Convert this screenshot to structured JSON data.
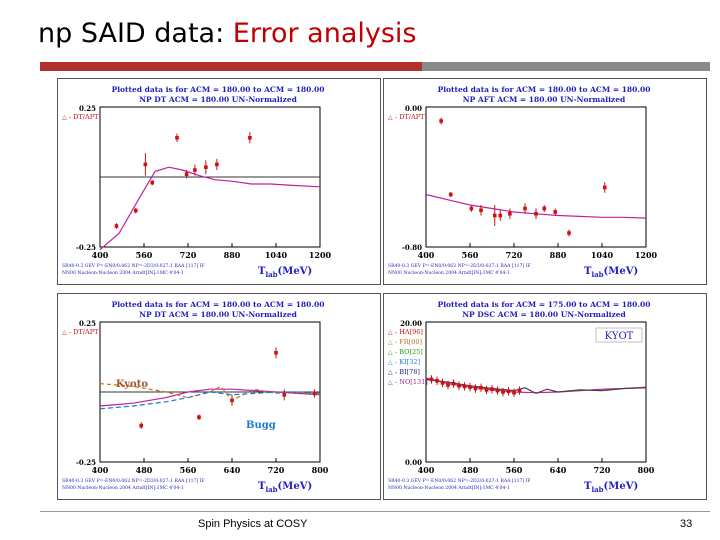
{
  "slide": {
    "title_main": "np SAID data: ",
    "title_accent": "Error analysis",
    "footer_left": "Spin Physics at COSY",
    "page_number": "33",
    "colors": {
      "title_accent": "#c00000",
      "rule_red": "#b03030",
      "rule_grey": "#8a8a8a",
      "panel_title": "#1f1fbf",
      "curve": "#c020a0",
      "data": "#cc1111"
    }
  },
  "chart_data": [
    {
      "type": "scatter",
      "header1": "Plotted data is for ACM = 180.00 to ACM = 180.00",
      "header2": "NP    DT     ACM =   180.00 UN-Normalized",
      "legend": [
        "- DT/APT"
      ],
      "ytick_top": "0.25",
      "ytick_bottom": "-0.25",
      "xticks": [
        "400",
        "560",
        "720",
        "880",
        "1040",
        "1200"
      ],
      "xlim": [
        400,
        1200
      ],
      "ylim": [
        -0.25,
        0.25
      ],
      "xlabel_main": "T",
      "xlabel_sub": "lab",
      "xlabel_unit": "(MeV)",
      "footnote1": "SR40-0.3 GEV P=-EN0/0:062 NP=-2D3/0:027:1 RAA [117] IF",
      "footnote2": "NN00 Nucleon-Nucleon 2004 Arndt[IN]:1MC 4'04-1",
      "points": [
        {
          "x": 460,
          "y": -0.175,
          "e": 0.01
        },
        {
          "x": 530,
          "y": -0.12,
          "e": 0.01
        },
        {
          "x": 565,
          "y": 0.045,
          "e": 0.04
        },
        {
          "x": 590,
          "y": -0.02,
          "e": 0.01
        },
        {
          "x": 680,
          "y": 0.14,
          "e": 0.015
        },
        {
          "x": 715,
          "y": 0.01,
          "e": 0.015
        },
        {
          "x": 745,
          "y": 0.025,
          "e": 0.02
        },
        {
          "x": 785,
          "y": 0.035,
          "e": 0.025
        },
        {
          "x": 825,
          "y": 0.045,
          "e": 0.02
        },
        {
          "x": 945,
          "y": 0.14,
          "e": 0.02
        }
      ],
      "curves": [
        {
          "name": "",
          "color": "#c020a0",
          "dash": "",
          "x": [
            400,
            470,
            540,
            600,
            650,
            700,
            760,
            820,
            880,
            950,
            1020,
            1100,
            1200
          ],
          "y": [
            -0.26,
            -0.2,
            -0.08,
            0.02,
            0.035,
            0.025,
            0.005,
            -0.01,
            -0.015,
            -0.025,
            -0.025,
            -0.03,
            -0.035
          ]
        }
      ],
      "zero_line": 0
    },
    {
      "type": "scatter",
      "header1": "Plotted data is for ACM = 180.00 to ACM = 180.00",
      "header2": "NP    AFT    ACM =   180.00 UN-Normalized",
      "legend": [
        "- DT/APT"
      ],
      "ytick_top": "0.00",
      "ytick_bottom": "-0.80",
      "xticks": [
        "400",
        "560",
        "720",
        "880",
        "1040",
        "1200"
      ],
      "xlim": [
        400,
        1200
      ],
      "ylim": [
        -0.8,
        0.0
      ],
      "xlabel_main": "T",
      "xlabel_sub": "lab",
      "xlabel_unit": "(MeV)",
      "footnote1": "SR40-0.3 GEV P=-EN0/0:062 NP=-2D3/0:027:1 RAA [117] IF",
      "footnote2": "NN00 Nucleon-Nucleon 2004 Arndt[IN]:1MC 4'04-1",
      "points": [
        {
          "x": 455,
          "y": -0.08,
          "e": 0.02
        },
        {
          "x": 490,
          "y": -0.5,
          "e": 0.015
        },
        {
          "x": 565,
          "y": -0.58,
          "e": 0.02
        },
        {
          "x": 600,
          "y": -0.59,
          "e": 0.03
        },
        {
          "x": 650,
          "y": -0.62,
          "e": 0.06
        },
        {
          "x": 670,
          "y": -0.62,
          "e": 0.03
        },
        {
          "x": 705,
          "y": -0.61,
          "e": 0.03
        },
        {
          "x": 760,
          "y": -0.58,
          "e": 0.03
        },
        {
          "x": 800,
          "y": -0.61,
          "e": 0.03
        },
        {
          "x": 830,
          "y": -0.58,
          "e": 0.02
        },
        {
          "x": 870,
          "y": -0.6,
          "e": 0.02
        },
        {
          "x": 920,
          "y": -0.72,
          "e": 0.02
        },
        {
          "x": 1050,
          "y": -0.46,
          "e": 0.03
        }
      ],
      "curves": [
        {
          "name": "",
          "color": "#c020a0",
          "dash": "",
          "x": [
            400,
            480,
            560,
            640,
            720,
            800,
            880,
            960,
            1040,
            1120,
            1200
          ],
          "y": [
            -0.5,
            -0.53,
            -0.56,
            -0.58,
            -0.6,
            -0.61,
            -0.62,
            -0.625,
            -0.63,
            -0.63,
            -0.635
          ]
        }
      ],
      "zero_line": null
    },
    {
      "type": "scatter",
      "header1": "Plotted data is for ACM = 180.00 to ACM = 180.00",
      "header2": "NP    DT     ACM =   180.00 UN-Normalized",
      "legend": [
        "- DT/APT"
      ],
      "ytick_top": "0.25",
      "ytick_bottom": "-0.25",
      "xticks": [
        "400",
        "480",
        "560",
        "640",
        "720",
        "800"
      ],
      "xlim": [
        400,
        800
      ],
      "ylim": [
        -0.25,
        0.25
      ],
      "xlabel_main": "T",
      "xlabel_sub": "lab",
      "xlabel_unit": "(MeV)",
      "footnote1": "SR40-0.3 GEV P=-EN0/0:062 NP=-2D3/0:027:1 RAA [117] IF",
      "footnote2": "NN00 Nucleon-Nucleon 2004 Arndt[IN]:1MC 4'04-1",
      "label_kyoto": "Kyoto",
      "label_bugg": "Bugg",
      "points": [
        {
          "x": 475,
          "y": -0.12,
          "e": 0.012
        },
        {
          "x": 580,
          "y": -0.09,
          "e": 0.01
        },
        {
          "x": 640,
          "y": -0.03,
          "e": 0.02
        },
        {
          "x": 720,
          "y": 0.14,
          "e": 0.02
        },
        {
          "x": 735,
          "y": -0.01,
          "e": 0.02
        },
        {
          "x": 790,
          "y": -0.005,
          "e": 0.015
        }
      ],
      "curves": [
        {
          "name": "",
          "color": "#c020a0",
          "dash": "",
          "x": [
            400,
            460,
            520,
            560,
            600,
            640,
            680,
            720,
            760,
            800
          ],
          "y": [
            -0.05,
            -0.04,
            -0.02,
            0.0,
            0.01,
            0.01,
            0.005,
            0.0,
            -0.005,
            -0.01
          ]
        },
        {
          "name": "Kyoto",
          "color": "#c07018",
          "dash": "4,3",
          "x": [
            400,
            460,
            520,
            560,
            600,
            620,
            640,
            680,
            720,
            760,
            800
          ],
          "y": [
            0.03,
            0.02,
            0.0,
            -0.02,
            0.0,
            0.02,
            -0.03,
            0.01,
            -0.005,
            0.0,
            -0.01
          ]
        },
        {
          "name": "Bugg",
          "color": "#1a7ad0",
          "dash": "5,3",
          "x": [
            400,
            460,
            520,
            560,
            600,
            640,
            680,
            720,
            760,
            800
          ],
          "y": [
            -0.06,
            -0.05,
            -0.035,
            -0.02,
            0.0,
            -0.01,
            -0.005,
            0.0,
            0.0,
            -0.005
          ]
        }
      ],
      "zero_line": 0
    },
    {
      "type": "scatter",
      "header1": "Plotted data is for ACM = 175.00 to ACM = 180.00",
      "header2": "NP    DSC    ACM =   180.00 UN-Normalized",
      "legend": [
        "- HA[96]",
        "- FR[00]",
        "- BO[25]",
        "- KI[32]",
        "- BI[78]",
        "- NO[131]"
      ],
      "legend_colors": [
        "#cc1111",
        "#c07018",
        "#1a9a1a",
        "#1a7ad0",
        "#1a1a8a",
        "#a01a9a"
      ],
      "label_kyot": "KYOT",
      "ytick_top": "20.00",
      "ytick_bottom": "0.00",
      "xticks": [
        "400",
        "480",
        "560",
        "640",
        "720",
        "800"
      ],
      "xlim": [
        400,
        800
      ],
      "ylim": [
        0,
        20
      ],
      "xlabel_main": "T",
      "xlabel_sub": "lab",
      "xlabel_unit": "(MeV)",
      "footnote1": "SR40-0.3 GEV P=-EN0/0:062 NP=-2D3/0:027:1 RAA [117] IF",
      "footnote2": "NN00 Nucleon-Nucleon 2004 Arndt[IN]:1MC 4'04-1",
      "points": [
        {
          "x": 410,
          "y": 11.8,
          "e": 0.6
        },
        {
          "x": 420,
          "y": 11.6,
          "e": 0.6
        },
        {
          "x": 430,
          "y": 11.3,
          "e": 0.6
        },
        {
          "x": 440,
          "y": 11.0,
          "e": 0.6
        },
        {
          "x": 450,
          "y": 11.2,
          "e": 0.6
        },
        {
          "x": 460,
          "y": 10.9,
          "e": 0.6
        },
        {
          "x": 470,
          "y": 10.8,
          "e": 0.6
        },
        {
          "x": 480,
          "y": 10.7,
          "e": 0.6
        },
        {
          "x": 490,
          "y": 10.5,
          "e": 0.6
        },
        {
          "x": 500,
          "y": 10.6,
          "e": 0.6
        },
        {
          "x": 510,
          "y": 10.3,
          "e": 0.6
        },
        {
          "x": 520,
          "y": 10.4,
          "e": 0.6
        },
        {
          "x": 530,
          "y": 10.2,
          "e": 0.6
        },
        {
          "x": 540,
          "y": 10.0,
          "e": 0.6
        },
        {
          "x": 550,
          "y": 10.1,
          "e": 0.6
        },
        {
          "x": 560,
          "y": 9.9,
          "e": 0.6
        },
        {
          "x": 570,
          "y": 10.2,
          "e": 0.6
        }
      ],
      "curves": [
        {
          "name": "",
          "color": "#c020a0",
          "dash": "",
          "x": [
            400,
            440,
            480,
            520,
            560,
            600,
            640,
            680,
            720,
            760,
            800
          ],
          "y": [
            12.0,
            11.2,
            10.7,
            10.3,
            10.0,
            9.9,
            10.0,
            10.2,
            10.4,
            10.5,
            10.7
          ]
        },
        {
          "name": "KYOT",
          "color": "#444444",
          "dash": "",
          "x": [
            400,
            440,
            480,
            520,
            560,
            580,
            600,
            620,
            640,
            680,
            720,
            760,
            800
          ],
          "y": [
            11.8,
            11.4,
            10.9,
            10.5,
            10.2,
            10.6,
            9.8,
            10.4,
            10.0,
            10.3,
            10.2,
            10.5,
            10.6
          ]
        }
      ],
      "zero_line": null
    }
  ]
}
